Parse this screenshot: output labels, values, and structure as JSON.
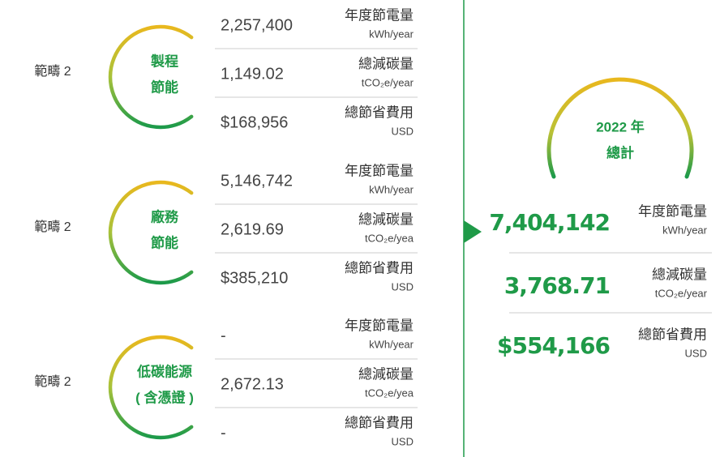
{
  "groups": [
    {
      "scope": "範疇 2",
      "category": [
        "製程",
        "節能"
      ],
      "rows": [
        {
          "value": "2,257,400",
          "label": "年度節電量",
          "unit": "kWh/year"
        },
        {
          "value": "1,149.02",
          "label": "總減碳量",
          "unit": "tCO₂e/year"
        },
        {
          "value": "$168,956",
          "label": "總節省費用",
          "unit": "USD"
        }
      ]
    },
    {
      "scope": "範疇 2",
      "category": [
        "廠務",
        "節能"
      ],
      "rows": [
        {
          "value": "5,146,742",
          "label": "年度節電量",
          "unit": "kWh/year"
        },
        {
          "value": "2,619.69",
          "label": "總減碳量",
          "unit": "tCO₂e/yea"
        },
        {
          "value": "$385,210",
          "label": "總節省費用",
          "unit": "USD"
        }
      ]
    },
    {
      "scope": "範疇 2",
      "category": [
        "低碳能源",
        "( 含憑證 )"
      ],
      "rows": [
        {
          "value": "-",
          "label": "年度節電量",
          "unit": "kWh/year"
        },
        {
          "value": "2,672.13",
          "label": "總減碳量",
          "unit": "tCO₂e/yea"
        },
        {
          "value": "-",
          "label": "總節省費用",
          "unit": "USD"
        }
      ]
    }
  ],
  "total": {
    "title": [
      "2022 年",
      "總計"
    ],
    "rows": [
      {
        "value": "7,404,142",
        "label": "年度節電量",
        "unit": "kWh/year"
      },
      {
        "value": "3,768.71",
        "label": "總減碳量",
        "unit": "tCO₂e/year"
      },
      {
        "value": "$554,166",
        "label": "總節省費用",
        "unit": "USD"
      }
    ]
  }
}
